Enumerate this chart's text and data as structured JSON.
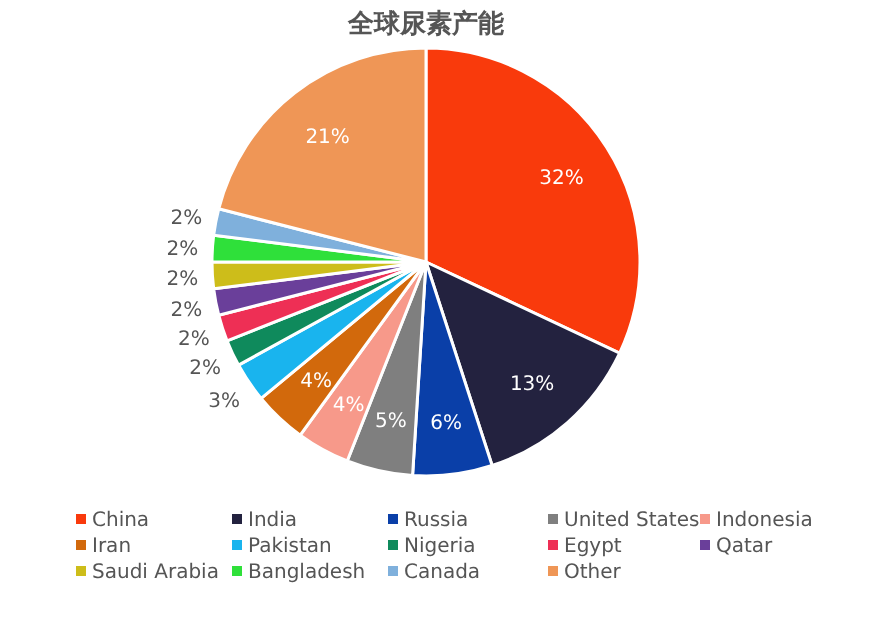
{
  "chart_data": {
    "type": "pie",
    "title": "全球尿素产能",
    "categories": [
      "China",
      "India",
      "Russia",
      "United States",
      "Indonesia",
      "Iran",
      "Pakistan",
      "Nigeria",
      "Egypt",
      "Qatar",
      "Saudi Arabia",
      "Bangladesh",
      "Canada",
      "Other"
    ],
    "values": [
      32,
      13,
      6,
      5,
      4,
      4,
      3,
      2,
      2,
      2,
      2,
      2,
      2,
      21
    ],
    "value_labels": [
      "32%",
      "13%",
      "6%",
      "5%",
      "4%",
      "4%",
      "3%",
      "2%",
      "2%",
      "2%",
      "2%",
      "2%",
      "2%",
      "21%"
    ],
    "colors": [
      "#f93a0c",
      "#23223f",
      "#0a3fa8",
      "#7f7f7f",
      "#f7998a",
      "#d2690c",
      "#19b4ee",
      "#0f8a5c",
      "#ee2f55",
      "#6a3f9a",
      "#cdbd1a",
      "#2fe03a",
      "#7fb0dc",
      "#ef9656"
    ],
    "legend": "bottom"
  }
}
